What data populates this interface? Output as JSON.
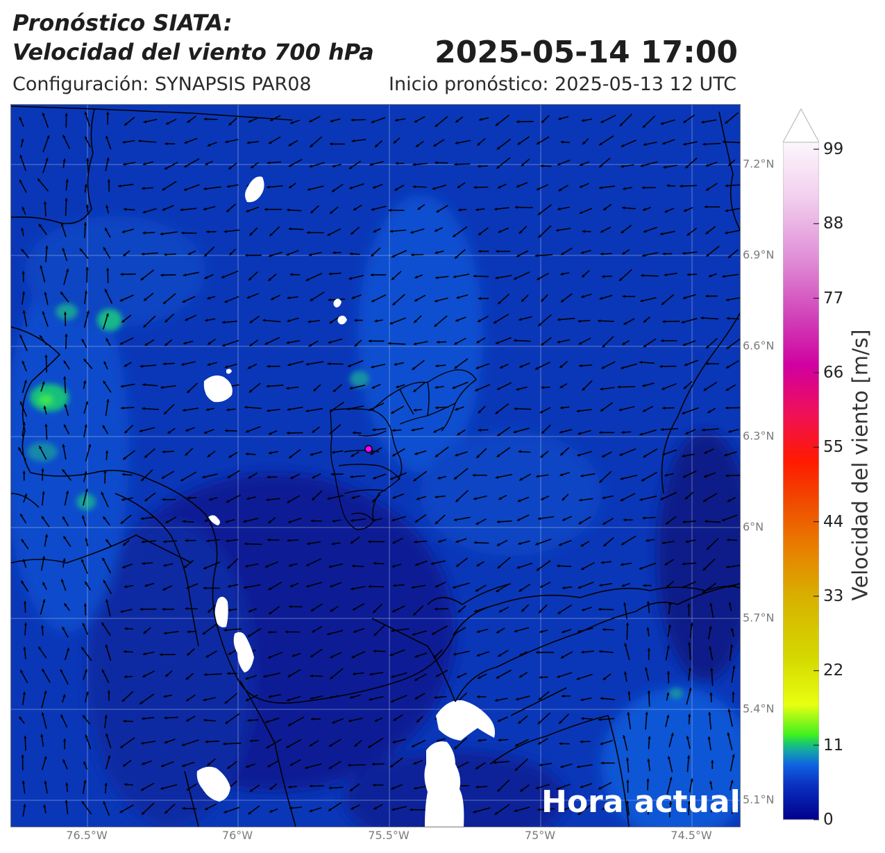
{
  "header": {
    "title_line1": "Pronóstico SIATA:",
    "title_line2": "Velocidad del viento 700 hPa",
    "datetime": "2025-05-14 17:00",
    "config": "Configuración: SYNAPSIS PAR08",
    "init": "Inicio pronóstico: 2025-05-13 12 UTC"
  },
  "map": {
    "badge": "Hora actual",
    "lat_labels": [
      "7.2°N",
      "6.9°N",
      "6.6°N",
      "6.3°N",
      "6°N",
      "5.7°N",
      "5.4°N",
      "5.1°N"
    ],
    "lon_labels": [
      "76.5°W",
      "76°W",
      "75.5°W",
      "75°W",
      "74.5°W"
    ],
    "marker_color": "#ff00ff"
  },
  "colorbar": {
    "label": "Velocidad del viento [m/s]",
    "ticks": [
      "99",
      "88",
      "77",
      "66",
      "55",
      "44",
      "33",
      "22",
      "11",
      "0"
    ],
    "range": [
      0,
      99
    ]
  }
}
